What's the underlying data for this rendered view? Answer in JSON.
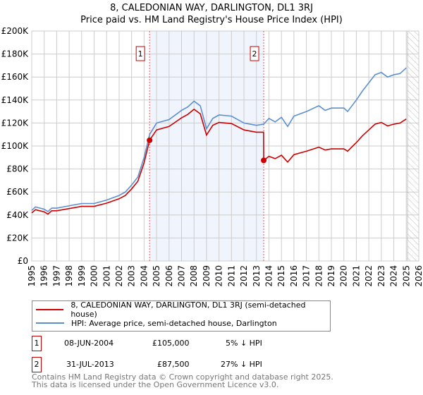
{
  "chart_data": {
    "type": "line",
    "title": "8, CALEDONIAN WAY, DARLINGTON, DL1 3RJ",
    "subtitle": "Price paid vs. HM Land Registry's House Price Index (HPI)",
    "xlim": [
      1995,
      2026
    ],
    "ylim": [
      0,
      200000
    ],
    "xticks": [
      "1995",
      "1996",
      "1997",
      "1998",
      "1999",
      "2000",
      "2001",
      "2002",
      "2003",
      "2004",
      "2005",
      "2006",
      "2007",
      "2008",
      "2009",
      "2010",
      "2011",
      "2012",
      "2013",
      "2014",
      "2015",
      "2016",
      "2017",
      "2018",
      "2019",
      "2020",
      "2021",
      "2022",
      "2023",
      "2024",
      "2025",
      "2026"
    ],
    "yticks": [
      {
        "v": 0,
        "label": "£0"
      },
      {
        "v": 20000,
        "label": "£20K"
      },
      {
        "v": 40000,
        "label": "£40K"
      },
      {
        "v": 60000,
        "label": "£60K"
      },
      {
        "v": 80000,
        "label": "£80K"
      },
      {
        "v": 100000,
        "label": "£100K"
      },
      {
        "v": 120000,
        "label": "£120K"
      },
      {
        "v": 140000,
        "label": "£140K"
      },
      {
        "v": 160000,
        "label": "£160K"
      },
      {
        "v": 180000,
        "label": "£180K"
      },
      {
        "v": 200000,
        "label": "£200K"
      }
    ],
    "grid": true,
    "forecast_start": 2025.1,
    "series": [
      {
        "name": "8, CALEDONIAN WAY, DARLINGTON, DL1 3RJ (semi-detached house)",
        "color": "#cc0000",
        "x": [
          1995,
          1995.3,
          1996,
          1996.3,
          1996.6,
          1997,
          1998,
          1999,
          2000,
          2001,
          2002,
          2002.5,
          2003,
          2003.5,
          2004,
          2004.44,
          2005,
          2006,
          2007,
          2007.5,
          2008,
          2008.5,
          2009,
          2009.5,
          2010,
          2011,
          2012,
          2013,
          2013.57,
          2013.58,
          2014,
          2014.5,
          2015,
          2015.5,
          2016,
          2017,
          2018,
          2018.5,
          2019,
          2020,
          2020.3,
          2021,
          2021.5,
          2022,
          2022.5,
          2023,
          2023.5,
          2024,
          2024.5,
          2025
        ],
        "y": [
          41800,
          44600,
          42700,
          40800,
          43700,
          43700,
          45600,
          47500,
          47500,
          50300,
          54100,
          57000,
          62700,
          69300,
          85500,
          105000,
          114000,
          117000,
          124500,
          127500,
          132000,
          128000,
          109500,
          118000,
          120500,
          119500,
          114000,
          112000,
          112000,
          87500,
          91000,
          89000,
          92000,
          86000,
          92500,
          95500,
          99000,
          96500,
          97500,
          97500,
          95500,
          103000,
          109000,
          114000,
          119000,
          120500,
          117500,
          119000,
          120000,
          123500
        ]
      },
      {
        "name": "HPI: Average price, semi-detached house, Darlington",
        "color": "#5b8fd0",
        "x": [
          1995,
          1995.3,
          1996,
          1996.3,
          1996.6,
          1997,
          1998,
          1999,
          2000,
          2001,
          2002,
          2002.5,
          2003,
          2003.5,
          2004,
          2004.44,
          2005,
          2006,
          2007,
          2007.5,
          2008,
          2008.5,
          2009,
          2009.5,
          2010,
          2011,
          2012,
          2013,
          2013.58,
          2014,
          2014.5,
          2015,
          2015.5,
          2016,
          2017,
          2018,
          2018.5,
          2019,
          2020,
          2020.3,
          2021,
          2021.5,
          2022,
          2022.5,
          2023,
          2023.5,
          2024,
          2024.5,
          2025
        ],
        "y": [
          44000,
          47000,
          45000,
          43000,
          46000,
          46000,
          48000,
          50000,
          50000,
          53000,
          57000,
          60000,
          66000,
          73000,
          90000,
          110000,
          120000,
          123000,
          131000,
          134000,
          139000,
          135000,
          115000,
          124000,
          127000,
          126000,
          120000,
          118000,
          119000,
          124000,
          121000,
          125000,
          117000,
          126000,
          130000,
          135000,
          131000,
          133000,
          133000,
          130000,
          140000,
          148000,
          155000,
          162000,
          164000,
          160000,
          162000,
          163000,
          168000
        ]
      }
    ],
    "sales": [
      {
        "num": "1",
        "x": 2004.44,
        "price": 105000,
        "date": "08-JUN-2004",
        "price_label": "£105,000",
        "hpi_diff": "5% ↓ HPI"
      },
      {
        "num": "2",
        "x": 2013.58,
        "price": 87500,
        "date": "31-JUL-2013",
        "price_label": "£87,500",
        "hpi_diff": "27% ↓ HPI"
      }
    ],
    "footer": [
      "Contains HM Land Registry data © Crown copyright and database right 2025.",
      "This data is licensed under the Open Government Licence v3.0."
    ]
  }
}
